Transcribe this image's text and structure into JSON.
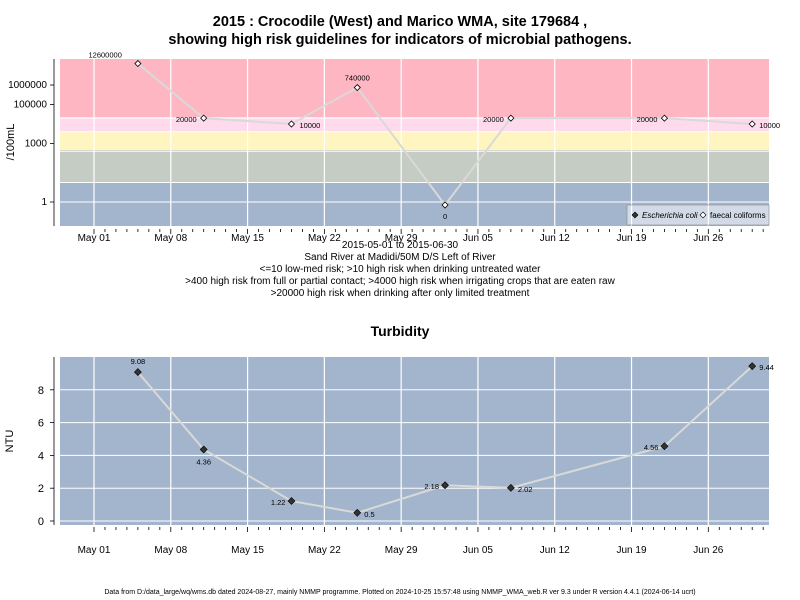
{
  "chart_data": [
    {
      "type": "line",
      "title_line1": "2015 : Crocodile (West) and Marico WMA, site 179684 ,",
      "title_line2": "showing high risk guidelines for indicators of microbial pathogens.",
      "ylabel": "/100mL",
      "y_scale": "log",
      "yticks": [
        "1",
        "1000",
        "100000",
        "1000000"
      ],
      "x_ticks": [
        "May 01",
        "May 08",
        "May 15",
        "May 22",
        "May 29",
        "Jun 05",
        "Jun 12",
        "Jun 19",
        "Jun 26"
      ],
      "x_tick_dates": [
        "2015-05-01",
        "2015-05-08",
        "2015-05-15",
        "2015-05-22",
        "2015-05-29",
        "2015-06-05",
        "2015-06-12",
        "2015-06-19",
        "2015-06-26"
      ],
      "date_range": "2015-05-01 to 2015-06-30",
      "site_description": "Sand River at Madidi/50M D/S Left of River",
      "guideline_notes": [
        "<=10 low-med risk; >10 high risk when drinking untreated water",
        ">400 high risk from full or partial contact; >4000 high risk when irrigating crops that are eaten raw",
        ">20000 high risk when drinking after only limited treatment"
      ],
      "risk_band_colors": [
        "#a3b5cc",
        "#c5ccc3",
        "#fff5c0",
        "#ffd9ec",
        "#ffb6c3"
      ],
      "legend_position": "bottom-right",
      "legend": [
        "Escherichia coli",
        "faecal coliforms"
      ],
      "series": [
        {
          "name": "faecal coliforms",
          "color": "#d9d9d9",
          "x": [
            "2015-05-05",
            "2015-05-11",
            "2015-05-19",
            "2015-05-25",
            "2015-06-02",
            "2015-06-08",
            "2015-06-22",
            "2015-06-30"
          ],
          "values": [
            12600000,
            20000,
            10000,
            740000,
            0,
            20000,
            20000,
            10000
          ],
          "labels": [
            "12600000",
            "20000",
            "10000",
            "740000",
            "0",
            "20000",
            "20000",
            "10000"
          ]
        }
      ]
    },
    {
      "type": "line",
      "title": "Turbidity",
      "ylabel": "NTU",
      "yticks": [
        "0",
        "2",
        "4",
        "6",
        "8"
      ],
      "ylim": [
        -0.3,
        10.2
      ],
      "x_ticks": [
        "May 01",
        "May 08",
        "May 15",
        "May 22",
        "May 29",
        "Jun 05",
        "Jun 12",
        "Jun 19",
        "Jun 26"
      ],
      "x_tick_dates": [
        "2015-05-01",
        "2015-05-08",
        "2015-05-15",
        "2015-05-22",
        "2015-05-29",
        "2015-06-05",
        "2015-06-12",
        "2015-06-19",
        "2015-06-26"
      ],
      "background_color": "#a3b5cc",
      "series": [
        {
          "color": "#d9d9d9",
          "x": [
            "2015-05-05",
            "2015-05-11",
            "2015-05-19",
            "2015-05-25",
            "2015-06-02",
            "2015-06-08",
            "2015-06-22",
            "2015-06-30"
          ],
          "values": [
            9.08,
            4.36,
            1.22,
            0.5,
            2.18,
            2.02,
            4.56,
            9.44
          ],
          "labels": [
            "9.08",
            "4.36",
            "1.22",
            "0.5",
            "2.18",
            "2.02",
            "4.56",
            "9.44"
          ]
        }
      ]
    }
  ],
  "footer": "Data from D:/data_large/wq/wms.db dated 2024-08-27, mainly NMMP programme. Plotted on 2024-10-25 15:57:48 using NMMP_WMA_web.R ver 9.3 under R version 4.4.1 (2024-06-14 ucrt)"
}
